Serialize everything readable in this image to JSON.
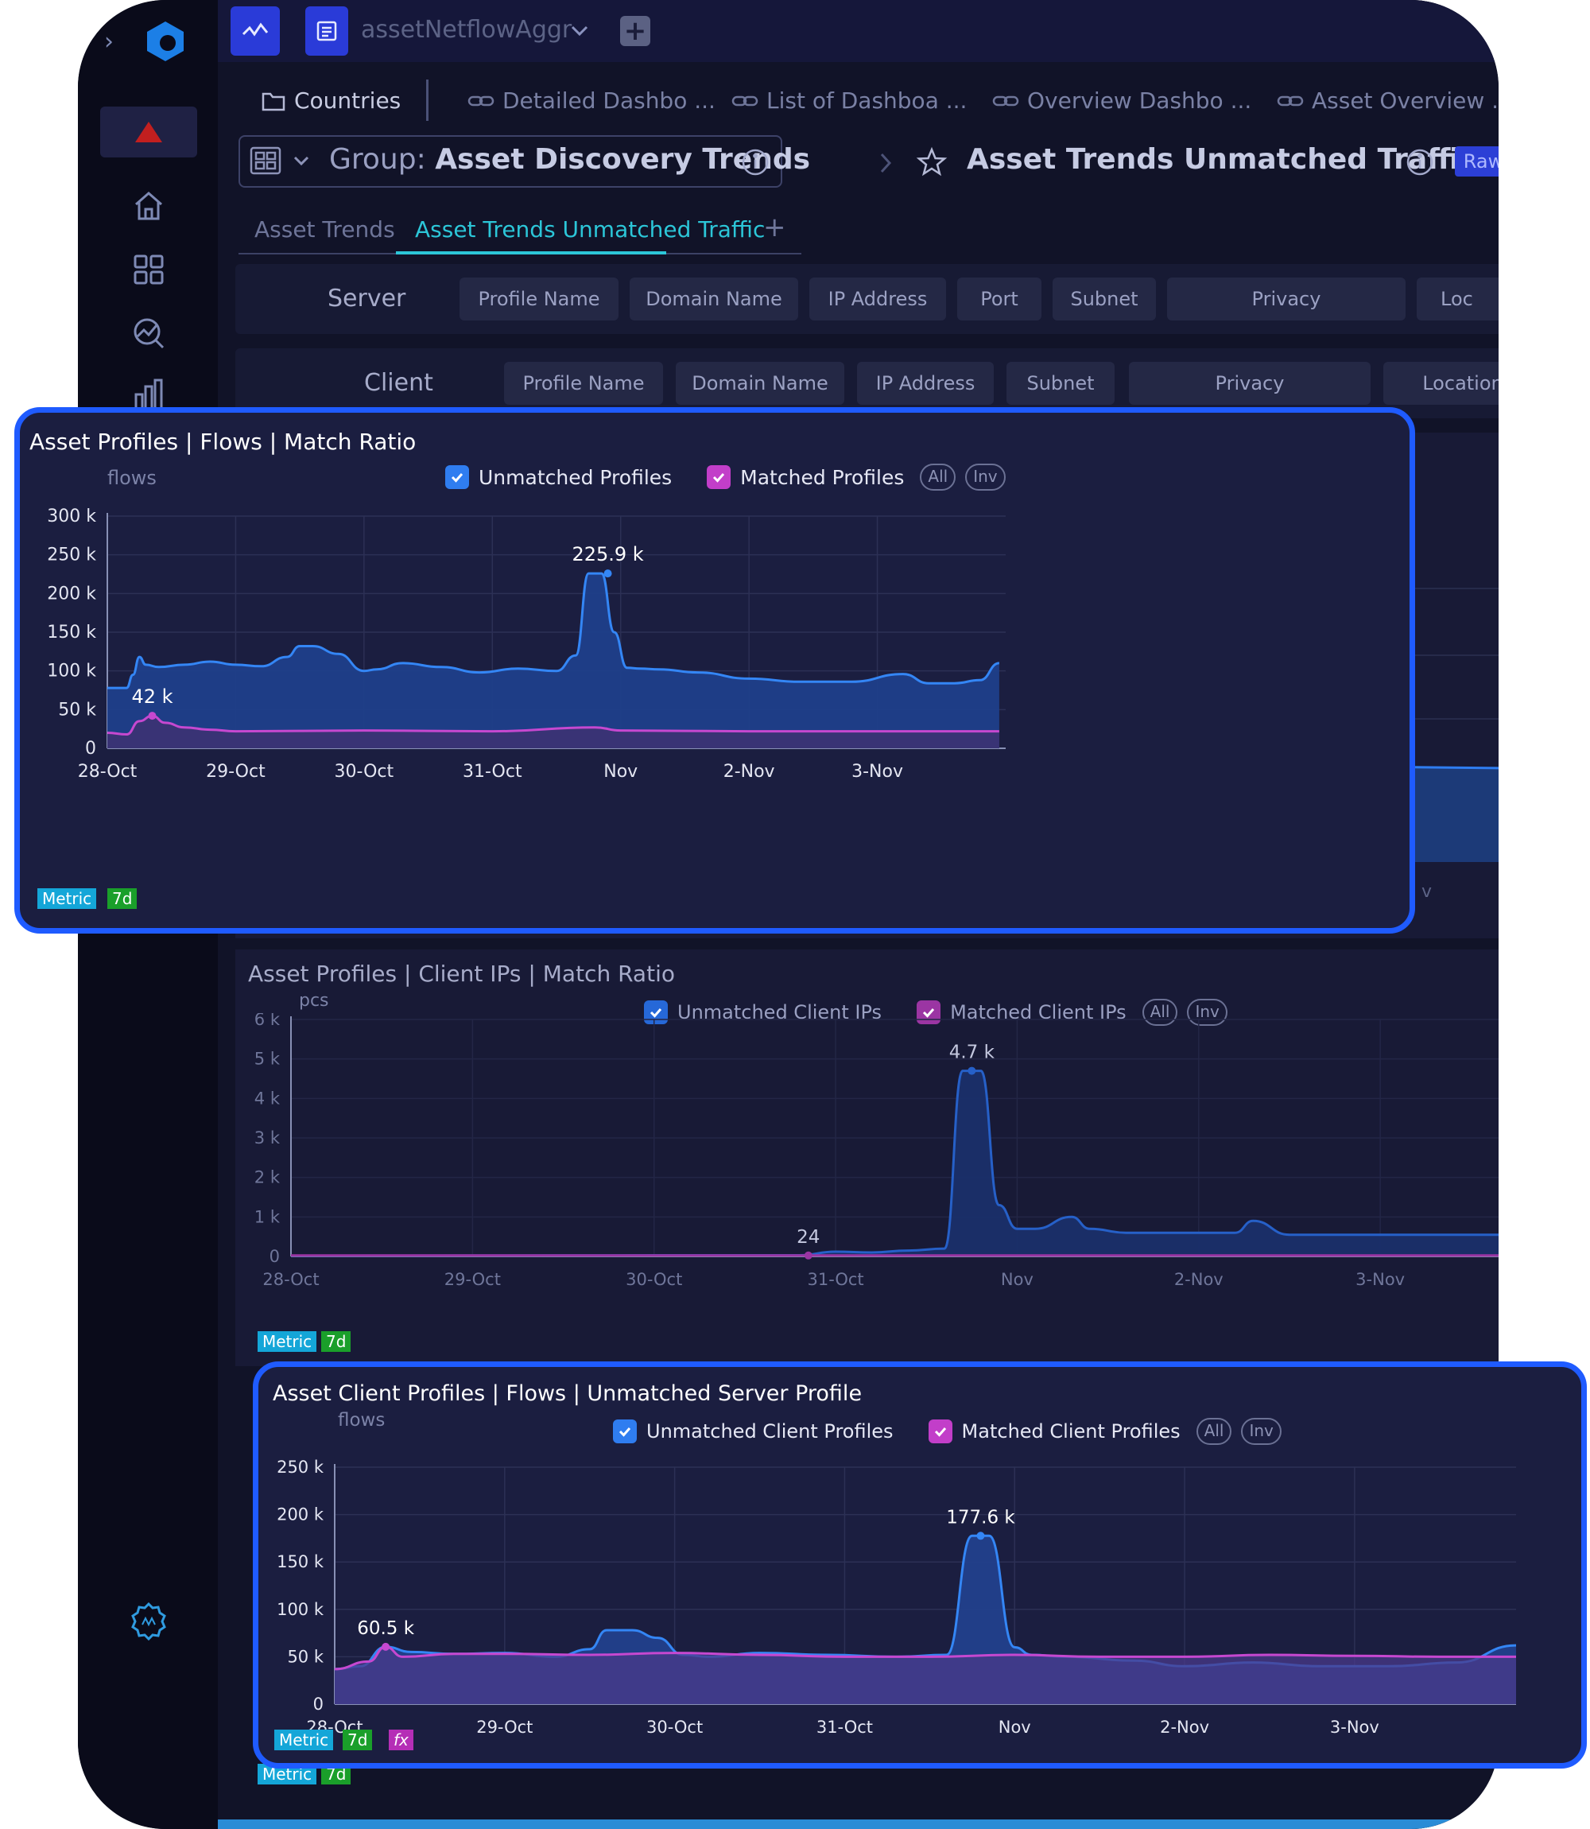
{
  "topbar": {
    "datasource": "assetNetflowAggr"
  },
  "tabs": [
    {
      "label": "Countries"
    },
    {
      "label": "Detailed Dashbo ..."
    },
    {
      "label": "List of Dashboa ..."
    },
    {
      "label": "Overview Dashbo ..."
    },
    {
      "label": "Asset Overview ..."
    }
  ],
  "header": {
    "group_prefix": "Group:",
    "group_name": "Asset Discovery Trends",
    "dashboard_title": "Asset Trends Unmatched Traffic",
    "raw_badge": "Raw"
  },
  "subtabs": [
    "Asset Trends",
    "Asset Trends Unmatched Traffic"
  ],
  "filters": {
    "server": {
      "label": "Server",
      "pills": [
        "Profile Name",
        "Domain Name",
        "IP Address",
        "Port",
        "Subnet",
        "Privacy",
        "Loc"
      ]
    },
    "client": {
      "label": "Client",
      "pills": [
        "Profile Name",
        "Domain Name",
        "IP Address",
        "Subnet",
        "Privacy",
        "Location"
      ]
    }
  },
  "colors": {
    "accent": "#1f5bff",
    "unmatched": "#2f7df0",
    "matched": "#c23ec9",
    "metric_badge": "#14a6d8",
    "period_badge": "#1a9f2a"
  },
  "charts": [
    {
      "title": "Asset Profiles | Flows | Match Ratio",
      "unit": "flows",
      "legend": [
        "Unmatched Profiles",
        "Matched Profiles"
      ],
      "chips": [
        "All",
        "Inv"
      ],
      "badges": [
        "Metric",
        "7d"
      ]
    },
    {
      "title": "Asset Profiles | Client IPs | Match Ratio",
      "unit": "pcs",
      "legend": [
        "Unmatched Client IPs",
        "Matched Client IPs"
      ],
      "chips": [
        "All",
        "Inv"
      ],
      "badges": [
        "Metric",
        "7d"
      ]
    },
    {
      "title": "Asset Client Profiles | Flows | Unmatched Server Profile",
      "unit": "flows",
      "legend": [
        "Unmatched Client Profiles",
        "Matched Client Profiles"
      ],
      "chips": [
        "All",
        "Inv"
      ],
      "badges": [
        "Metric",
        "7d",
        "fx"
      ]
    }
  ],
  "bottom_badges": [
    "Metric",
    "7d"
  ],
  "chart_data": [
    {
      "type": "area",
      "title": "Asset Profiles | Flows | Match Ratio",
      "ylabel": "flows",
      "xticks": [
        "28-Oct",
        "29-Oct",
        "30-Oct",
        "31-Oct",
        "Nov",
        "2-Nov",
        "3-Nov"
      ],
      "yticks": [
        "0",
        "50 k",
        "100 k",
        "150 k",
        "200 k",
        "250 k",
        "300 k"
      ],
      "ylim": [
        0,
        300000
      ],
      "xlim": [
        0,
        7.0
      ],
      "series": [
        {
          "name": "Unmatched Profiles",
          "x": [
            0,
            0.15,
            0.2,
            0.25,
            0.3,
            0.4,
            0.6,
            0.8,
            1.0,
            1.2,
            1.4,
            1.5,
            1.6,
            1.8,
            2.0,
            2.1,
            2.3,
            2.6,
            2.9,
            3.2,
            3.5,
            3.65,
            3.75,
            3.85,
            3.95,
            4.05,
            4.15,
            4.3,
            4.6,
            5.0,
            5.4,
            5.8,
            6.2,
            6.4,
            6.6,
            6.8,
            6.95
          ],
          "y": [
            78000,
            78000,
            95000,
            118000,
            108000,
            105000,
            108000,
            112000,
            108000,
            106000,
            118000,
            132000,
            132000,
            122000,
            100000,
            102000,
            110000,
            105000,
            98000,
            103000,
            100000,
            120000,
            225900,
            225900,
            150000,
            104000,
            103000,
            102000,
            98000,
            90000,
            86000,
            86000,
            96000,
            84000,
            84000,
            88000,
            110000
          ]
        },
        {
          "name": "Matched Profiles",
          "x": [
            0,
            0.15,
            0.25,
            0.35,
            0.45,
            0.6,
            0.8,
            1.0,
            2.0,
            3.0,
            3.8,
            4.0,
            5.0,
            6.0,
            6.95
          ],
          "y": [
            20000,
            18000,
            35000,
            42000,
            33000,
            27000,
            24000,
            22000,
            23000,
            22000,
            27000,
            23000,
            22000,
            22000,
            22000
          ]
        }
      ],
      "annotations": [
        {
          "label": "225.9 k",
          "x": 3.9,
          "y": 225900
        },
        {
          "label": "42 k",
          "x": 0.35,
          "y": 42000
        }
      ]
    },
    {
      "type": "area",
      "title": "Asset Profiles | Client IPs | Match Ratio",
      "ylabel": "pcs",
      "xticks": [
        "28-Oct",
        "29-Oct",
        "30-Oct",
        "31-Oct",
        "Nov",
        "2-Nov",
        "3-Nov"
      ],
      "yticks": [
        "0",
        "1 k",
        "2 k",
        "3 k",
        "4 k",
        "5 k",
        "6 k"
      ],
      "ylim": [
        0,
        6000
      ],
      "xlim": [
        0,
        6.7
      ],
      "series": [
        {
          "name": "Unmatched Client IPs",
          "x": [
            0,
            1,
            2,
            2.8,
            3.0,
            3.2,
            3.4,
            3.6,
            3.7,
            3.8,
            3.9,
            4.0,
            4.1,
            4.3,
            4.4,
            4.6,
            4.8,
            5.2,
            5.3,
            5.5,
            6.0,
            6.7
          ],
          "y": [
            20,
            24,
            30,
            30,
            120,
            100,
            150,
            200,
            4700,
            4700,
            1300,
            700,
            700,
            1000,
            700,
            600,
            600,
            600,
            900,
            550,
            550,
            550
          ]
        },
        {
          "name": "Matched Client IPs",
          "x": [
            0,
            3.0,
            6.7
          ],
          "y": [
            24,
            24,
            24
          ]
        }
      ],
      "annotations": [
        {
          "label": "4.7 k",
          "x": 3.75,
          "y": 4700
        },
        {
          "label": "24",
          "x": 2.85,
          "y": 24
        }
      ]
    },
    {
      "type": "area",
      "title": "Asset Client Profiles | Flows | Unmatched Server Profile",
      "ylabel": "flows",
      "xticks": [
        "28-Oct",
        "29-Oct",
        "30-Oct",
        "31-Oct",
        "Nov",
        "2-Nov",
        "3-Nov"
      ],
      "yticks": [
        "0",
        "50 k",
        "100 k",
        "150 k",
        "200 k",
        "250 k"
      ],
      "ylim": [
        0,
        250000
      ],
      "xlim": [
        0,
        6.95
      ],
      "series": [
        {
          "name": "Unmatched Client Profiles",
          "x": [
            0,
            0.15,
            0.3,
            0.45,
            0.7,
            1.0,
            1.3,
            1.5,
            1.6,
            1.75,
            1.9,
            2.05,
            2.2,
            2.5,
            2.9,
            3.3,
            3.6,
            3.75,
            3.85,
            4.0,
            4.1,
            4.3,
            4.7,
            5.0,
            5.4,
            5.8,
            6.2,
            6.6,
            6.95
          ],
          "y": [
            37000,
            40000,
            60500,
            55000,
            53000,
            54000,
            50000,
            58000,
            78000,
            78000,
            70000,
            52000,
            50000,
            54000,
            52000,
            50000,
            52000,
            177600,
            177600,
            60000,
            52000,
            50000,
            46000,
            40000,
            44000,
            40000,
            40000,
            44000,
            62000
          ]
        },
        {
          "name": "Matched Client Profiles",
          "x": [
            0,
            0.2,
            0.3,
            0.4,
            0.7,
            1.0,
            1.5,
            2.0,
            2.5,
            3.0,
            3.5,
            4.0,
            4.5,
            5.0,
            5.5,
            6.0,
            6.5,
            6.95
          ],
          "y": [
            37000,
            45000,
            60500,
            50000,
            53000,
            53000,
            52000,
            54000,
            52000,
            50000,
            50000,
            52000,
            50000,
            50000,
            52000,
            51000,
            50000,
            50000
          ]
        }
      ],
      "annotations": [
        {
          "label": "177.6 k",
          "x": 3.8,
          "y": 177600
        },
        {
          "label": "60.5 k",
          "x": 0.3,
          "y": 60500
        }
      ]
    }
  ]
}
